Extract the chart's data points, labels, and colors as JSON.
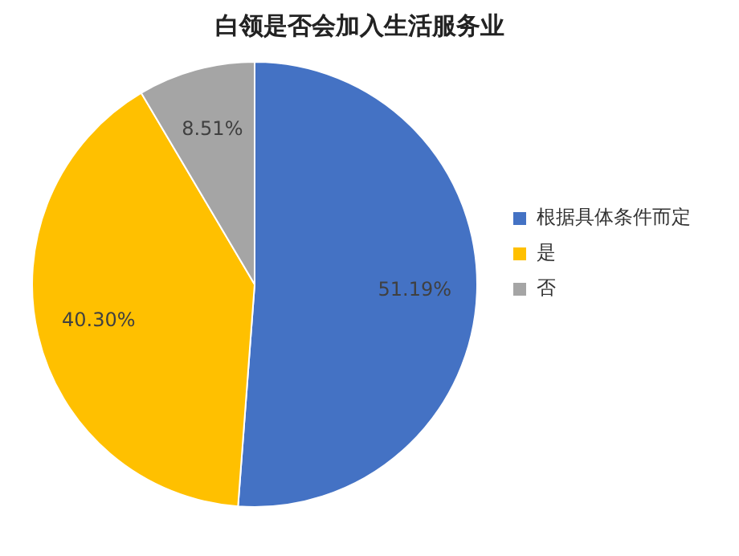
{
  "chart_data": {
    "type": "pie",
    "title": "白领是否会加入生活服务业",
    "categories": [
      "根据具体条件而定",
      "是",
      "否"
    ],
    "values": [
      51.19,
      40.3,
      8.51
    ],
    "colors": [
      "#4472c4",
      "#ffc000",
      "#a5a5a5"
    ],
    "value_labels": [
      "51.19%",
      "40.30%",
      "8.51%"
    ],
    "legend": "right"
  }
}
